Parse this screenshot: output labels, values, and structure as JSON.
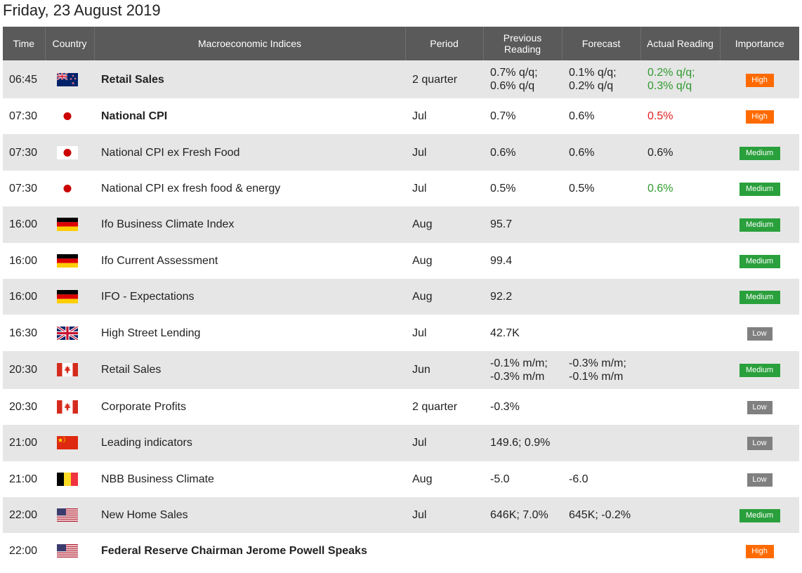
{
  "page": {
    "title": "Friday, 23 August 2019"
  },
  "colors": {
    "header_bg": "#5a5a5a",
    "row_alt_bg": "#e6e6e6",
    "high": "#ff6a00",
    "medium": "#2aa03c",
    "low": "#808080",
    "positive": "#2e9a2e",
    "negative": "#e02020"
  },
  "columns": {
    "time": "Time",
    "country": "Country",
    "indices": "Macroeconomic Indices",
    "period": "Period",
    "previous": "Previous Reading",
    "forecast": "Forecast",
    "actual": "Actual Reading",
    "importance": "Importance"
  },
  "rows": [
    {
      "time": "06:45",
      "country": "New Zealand",
      "flag": "nz-flag-icon",
      "name": "Retail Sales",
      "bold": true,
      "period": "2 quarter",
      "previous": [
        "0.7% q/q;",
        "0.6% q/q"
      ],
      "forecast": [
        "0.1% q/q;",
        "0.2% q/q"
      ],
      "actual": [
        "0.2% q/q;",
        "0.3% q/q"
      ],
      "actual_color": "positive",
      "importance": "High"
    },
    {
      "time": "07:30",
      "country": "Japan",
      "flag": "jp-flag-icon",
      "name": "National CPI",
      "bold": true,
      "period": "Jul",
      "previous": [
        "0.7%"
      ],
      "forecast": [
        "0.6%"
      ],
      "actual": [
        "0.5%"
      ],
      "actual_color": "negative",
      "importance": "High"
    },
    {
      "time": "07:30",
      "country": "Japan",
      "flag": "jp-flag-icon",
      "name": "National CPI ex Fresh Food",
      "bold": false,
      "period": "Jul",
      "previous": [
        "0.6%"
      ],
      "forecast": [
        "0.6%"
      ],
      "actual": [
        "0.6%"
      ],
      "actual_color": "neutral",
      "importance": "Medium"
    },
    {
      "time": "07:30",
      "country": "Japan",
      "flag": "jp-flag-icon",
      "name": "National CPI ex fresh food & energy",
      "bold": false,
      "period": "Jul",
      "previous": [
        "0.5%"
      ],
      "forecast": [
        "0.5%"
      ],
      "actual": [
        "0.6%"
      ],
      "actual_color": "positive",
      "importance": "Medium"
    },
    {
      "time": "16:00",
      "country": "Germany",
      "flag": "de-flag-icon",
      "name": "Ifo Business Climate Index",
      "bold": false,
      "period": "Aug",
      "previous": [
        "95.7"
      ],
      "forecast": [],
      "actual": [],
      "actual_color": "neutral",
      "importance": "Medium"
    },
    {
      "time": "16:00",
      "country": "Germany",
      "flag": "de-flag-icon",
      "name": "Ifo Current Assessment",
      "bold": false,
      "period": "Aug",
      "previous": [
        "99.4"
      ],
      "forecast": [],
      "actual": [],
      "actual_color": "neutral",
      "importance": "Medium"
    },
    {
      "time": "16:00",
      "country": "Germany",
      "flag": "de-flag-icon",
      "name": "IFO - Expectations",
      "bold": false,
      "period": "Aug",
      "previous": [
        "92.2"
      ],
      "forecast": [],
      "actual": [],
      "actual_color": "neutral",
      "importance": "Medium"
    },
    {
      "time": "16:30",
      "country": "United Kingdom",
      "flag": "uk-flag-icon",
      "name": "High Street Lending",
      "bold": false,
      "period": "Jul",
      "previous": [
        "42.7K"
      ],
      "forecast": [],
      "actual": [],
      "actual_color": "neutral",
      "importance": "Low"
    },
    {
      "time": "20:30",
      "country": "Canada",
      "flag": "ca-flag-icon",
      "name": "Retail Sales",
      "bold": false,
      "period": "Jun",
      "previous": [
        "-0.1% m/m;",
        "-0.3% m/m"
      ],
      "forecast": [
        "-0.3% m/m;",
        "-0.1% m/m"
      ],
      "actual": [],
      "actual_color": "neutral",
      "importance": "Medium"
    },
    {
      "time": "20:30",
      "country": "Canada",
      "flag": "ca-flag-icon",
      "name": "Corporate Profits",
      "bold": false,
      "period": "2 quarter",
      "previous": [
        "-0.3%"
      ],
      "forecast": [],
      "actual": [],
      "actual_color": "neutral",
      "importance": "Low"
    },
    {
      "time": "21:00",
      "country": "China",
      "flag": "cn-flag-icon",
      "name": "Leading indicators",
      "bold": false,
      "period": "Jul",
      "previous": [
        "149.6; 0.9%"
      ],
      "forecast": [],
      "actual": [],
      "actual_color": "neutral",
      "importance": "Low"
    },
    {
      "time": "21:00",
      "country": "Belgium",
      "flag": "be-flag-icon",
      "name": "NBB Business Climate",
      "bold": false,
      "period": "Aug",
      "previous": [
        "-5.0"
      ],
      "forecast": [
        "-6.0"
      ],
      "actual": [],
      "actual_color": "neutral",
      "importance": "Low"
    },
    {
      "time": "22:00",
      "country": "United States",
      "flag": "us-flag-icon",
      "name": "New Home Sales",
      "bold": false,
      "period": "Jul",
      "previous": [
        "646K; 7.0%"
      ],
      "forecast": [
        "645K; -0.2%"
      ],
      "actual": [],
      "actual_color": "neutral",
      "importance": "Medium"
    },
    {
      "time": "22:00",
      "country": "United States",
      "flag": "us-flag-icon",
      "name": "Federal Reserve Chairman Jerome Powell Speaks",
      "bold": true,
      "period": "",
      "previous": [],
      "forecast": [],
      "actual": [],
      "actual_color": "neutral",
      "importance": "High"
    }
  ]
}
